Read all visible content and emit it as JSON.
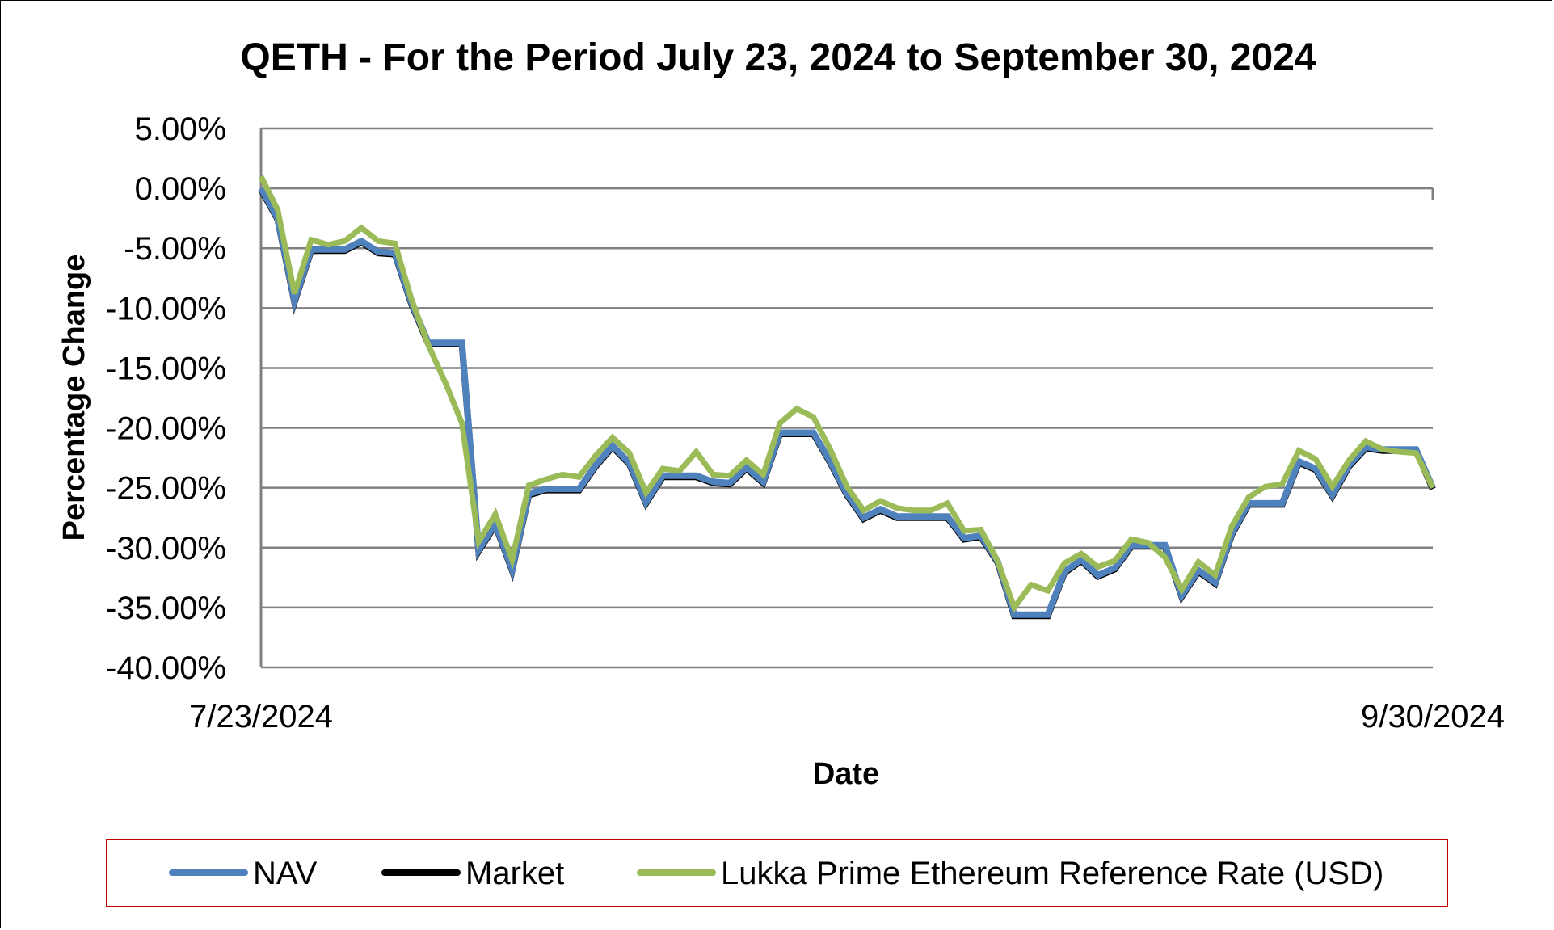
{
  "chart_data": {
    "type": "line",
    "title": "QETH - For the Period July 23, 2024 to September 30, 2024",
    "xlabel": "Date",
    "ylabel": "Percentage Change",
    "x_tick_labels": [
      "7/23/2024",
      "9/30/2024"
    ],
    "x_range": [
      "7/23/2024",
      "9/30/2024"
    ],
    "ylim": [
      -40,
      5
    ],
    "y_ticks": [
      5,
      0,
      -5,
      -10,
      -15,
      -20,
      -25,
      -30,
      -35,
      -40
    ],
    "y_tick_labels": [
      "5.00%",
      "0.00%",
      "-5.00%",
      "-10.00%",
      "-15.00%",
      "-20.00%",
      "-25.00%",
      "-30.00%",
      "-35.00%",
      "-40.00%"
    ],
    "grid": true,
    "legend_position": "bottom",
    "series": [
      {
        "name": "NAV",
        "color": "#4f81bd",
        "values": [
          0,
          -2.5,
          -9.4,
          -5.1,
          -5.1,
          -5.1,
          -4.4,
          -5.3,
          -5.4,
          -9.6,
          -12.9,
          -12.9,
          -12.9,
          -30.2,
          -28.0,
          -31.8,
          -25.5,
          -25.1,
          -25.1,
          -25.1,
          -23.1,
          -21.5,
          -22.9,
          -26.2,
          -24.0,
          -24.0,
          -24.0,
          -24.5,
          -24.6,
          -23.3,
          -24.5,
          -20.4,
          -20.4,
          -20.4,
          -22.8,
          -25.5,
          -27.5,
          -26.8,
          -27.4,
          -27.4,
          -27.4,
          -27.4,
          -29.2,
          -29.0,
          -31.1,
          -35.6,
          -35.6,
          -35.6,
          -32.0,
          -31.0,
          -32.3,
          -31.7,
          -29.8,
          -29.8,
          -29.8,
          -34.0,
          -31.9,
          -32.9,
          -28.8,
          -26.3,
          -26.3,
          -26.3,
          -22.8,
          -23.4,
          -25.6,
          -23.1,
          -21.6,
          -21.8,
          -21.8,
          -21.8,
          -25.0
        ]
      },
      {
        "name": "Market",
        "color": "#000000",
        "values": [
          -0.1,
          -2.6,
          -9.5,
          -5.2,
          -5.2,
          -5.2,
          -4.5,
          -5.4,
          -5.5,
          -9.7,
          -13.0,
          -13.0,
          -13.0,
          -30.3,
          -28.1,
          -31.9,
          -25.6,
          -25.2,
          -25.2,
          -25.2,
          -23.2,
          -21.6,
          -23.0,
          -26.3,
          -24.1,
          -24.1,
          -24.1,
          -24.6,
          -24.7,
          -23.4,
          -24.6,
          -20.5,
          -20.5,
          -20.5,
          -22.9,
          -25.6,
          -27.6,
          -26.9,
          -27.5,
          -27.5,
          -27.5,
          -27.5,
          -29.3,
          -29.1,
          -31.2,
          -35.7,
          -35.7,
          -35.7,
          -32.1,
          -31.1,
          -32.4,
          -31.8,
          -29.9,
          -29.9,
          -29.9,
          -34.1,
          -32.0,
          -33.0,
          -28.9,
          -26.4,
          -26.4,
          -26.4,
          -22.9,
          -23.5,
          -25.7,
          -23.2,
          -21.7,
          -21.9,
          -21.9,
          -21.9,
          -25.1
        ]
      },
      {
        "name": "Lukka Prime Ethereum Reference Rate (USD)",
        "color": "#9bbb59",
        "values": [
          1.0,
          -1.8,
          -8.8,
          -4.3,
          -4.7,
          -4.4,
          -3.3,
          -4.4,
          -4.6,
          -9.3,
          -13.1,
          -16.2,
          -19.6,
          -29.5,
          -27.2,
          -31.0,
          -24.8,
          -24.3,
          -23.9,
          -24.1,
          -22.3,
          -20.8,
          -22.1,
          -25.4,
          -23.4,
          -23.6,
          -22.0,
          -23.9,
          -24.0,
          -22.7,
          -23.9,
          -19.6,
          -18.4,
          -19.1,
          -21.8,
          -24.9,
          -26.9,
          -26.1,
          -26.7,
          -26.9,
          -26.9,
          -26.3,
          -28.6,
          -28.5,
          -31.1,
          -35.0,
          -33.1,
          -33.6,
          -31.3,
          -30.5,
          -31.6,
          -31.1,
          -29.3,
          -29.6,
          -30.8,
          -33.5,
          -31.2,
          -32.3,
          -28.2,
          -25.8,
          -24.9,
          -24.7,
          -21.9,
          -22.6,
          -24.9,
          -22.7,
          -21.1,
          -21.8,
          -22.0,
          -22.1,
          -25.0
        ]
      }
    ]
  }
}
